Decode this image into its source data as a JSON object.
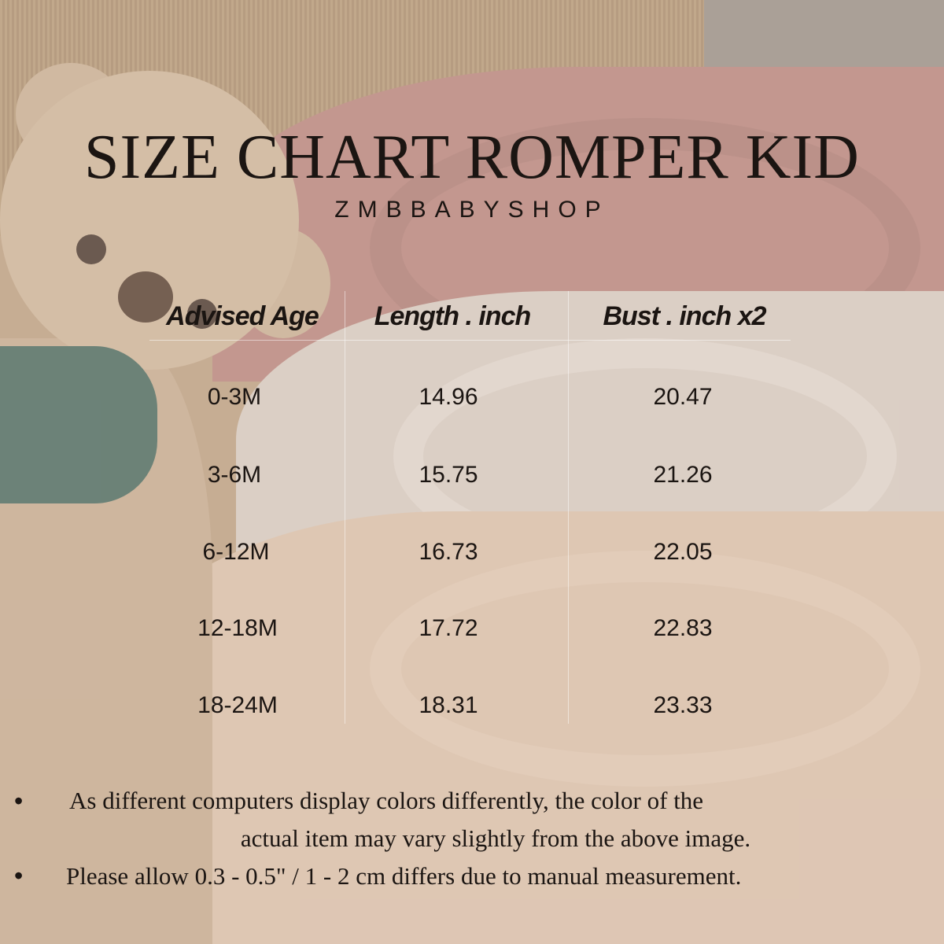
{
  "title": "SIZE CHART ROMPER KID",
  "brand": "ZMBBABYSHOP",
  "table": {
    "headers": [
      "Advised Age",
      "Length . inch",
      "Bust . inch x2"
    ],
    "rows": [
      [
        "0-3M",
        "14.96",
        "20.47"
      ],
      [
        "3-6M",
        "15.75",
        "21.26"
      ],
      [
        "6-12M",
        "16.73",
        "22.05"
      ],
      [
        "12-18M",
        "17.72",
        "22.83"
      ],
      [
        "18-24M",
        "18.31",
        "23.33"
      ]
    ]
  },
  "notes": {
    "bullet": "•",
    "note1_line1": "As different computers display colors differently, the color of the",
    "note1_line2": "actual item may vary slightly from the above image.",
    "note2": "Please allow 0.3 - 0.5\" / 1 - 2 cm differs due to manual measurement."
  }
}
